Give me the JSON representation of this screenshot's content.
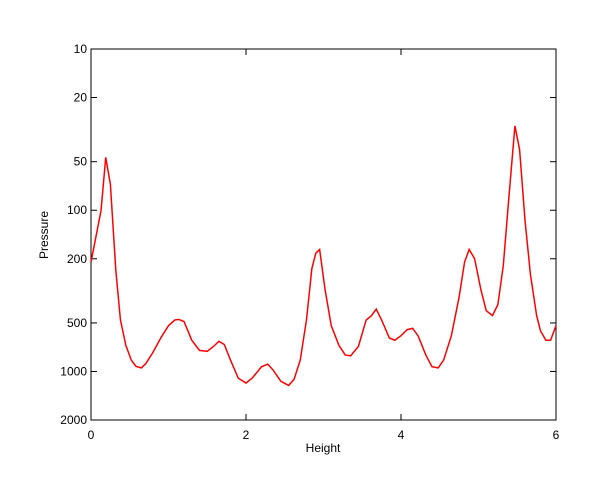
{
  "chart_data": {
    "type": "line",
    "x_label": "Height",
    "y_label": "Pressure",
    "y_scale": "log",
    "y_inverted": true,
    "xlim": [
      0,
      6
    ],
    "xticks": [
      0,
      2,
      4,
      6
    ],
    "ylim": [
      10,
      2000
    ],
    "yticks": [
      10,
      20,
      50,
      100,
      200,
      500,
      1000,
      2000
    ],
    "series": [
      {
        "color": "#ff0000",
        "x": [
          0,
          0.13,
          0.19,
          0.25,
          0.32,
          0.38,
          0.45,
          0.52,
          0.58,
          0.65,
          0.71,
          0.8,
          0.9,
          1.0,
          1.08,
          1.13,
          1.2,
          1.3,
          1.4,
          1.5,
          1.58,
          1.65,
          1.72,
          1.8,
          1.9,
          2.0,
          2.08,
          2.2,
          2.28,
          2.35,
          2.45,
          2.55,
          2.62,
          2.7,
          2.78,
          2.85,
          2.9,
          2.95,
          3.02,
          3.1,
          3.2,
          3.28,
          3.35,
          3.45,
          3.55,
          3.62,
          3.68,
          3.75,
          3.85,
          3.92,
          4.0,
          4.08,
          4.15,
          4.22,
          4.32,
          4.4,
          4.48,
          4.55,
          4.65,
          4.75,
          4.82,
          4.88,
          4.95,
          5.03,
          5.1,
          5.18,
          5.25,
          5.32,
          5.4,
          5.47,
          5.53,
          5.6,
          5.67,
          5.75,
          5.8,
          5.87,
          5.93,
          6.0
        ],
        "values": [
          210,
          100,
          47,
          69,
          235,
          480,
          690,
          850,
          930,
          950,
          890,
          760,
          620,
          520,
          480,
          475,
          490,
          640,
          740,
          750,
          700,
          650,
          680,
          850,
          1100,
          1180,
          1100,
          935,
          900,
          980,
          1150,
          1220,
          1120,
          850,
          480,
          230,
          185,
          175,
          310,
          520,
          690,
          790,
          800,
          700,
          480,
          450,
          410,
          480,
          620,
          640,
          600,
          550,
          540,
          600,
          790,
          935,
          950,
          850,
          600,
          345,
          210,
          175,
          200,
          310,
          420,
          450,
          385,
          220,
          75,
          30,
          42,
          115,
          250,
          450,
          560,
          640,
          640,
          520
        ]
      }
    ]
  }
}
